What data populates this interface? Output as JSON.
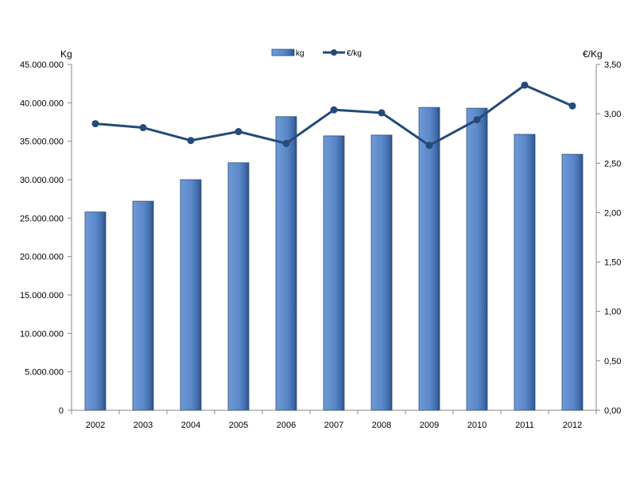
{
  "chart_data": {
    "type": "bar",
    "categories": [
      "2002",
      "2003",
      "2004",
      "2005",
      "2006",
      "2007",
      "2008",
      "2009",
      "2010",
      "2011",
      "2012"
    ],
    "series": [
      {
        "name": "kg",
        "type": "bar",
        "axis": "left",
        "values": [
          25800000,
          27200000,
          30000000,
          32200000,
          38200000,
          35700000,
          35800000,
          39400000,
          39300000,
          35900000,
          33300000
        ]
      },
      {
        "name": "€/kg",
        "type": "line",
        "axis": "right",
        "values": [
          2.9,
          2.86,
          2.73,
          2.82,
          2.7,
          3.04,
          3.01,
          2.68,
          2.94,
          3.29,
          3.08
        ]
      }
    ],
    "ylabel_left": "Kg",
    "ylabel_right": "€/Kg",
    "ylim_left": [
      0,
      45000000
    ],
    "ylim_right": [
      0,
      3.5
    ],
    "yticks_left": [
      "0",
      "5.000.000",
      "10.000.000",
      "15.000.000",
      "20.000.000",
      "25.000.000",
      "30.000.000",
      "35.000.000",
      "40.000.000",
      "45.000.000"
    ],
    "yticks_right": [
      "0,00",
      "0,50",
      "1,00",
      "1,50",
      "2,00",
      "2,50",
      "3,00",
      "3,50"
    ],
    "grid": false,
    "legend": "top-center",
    "colors": {
      "bar": "#5a87c8",
      "bar_edge": "#2f4f80",
      "line": "#244a78"
    }
  }
}
